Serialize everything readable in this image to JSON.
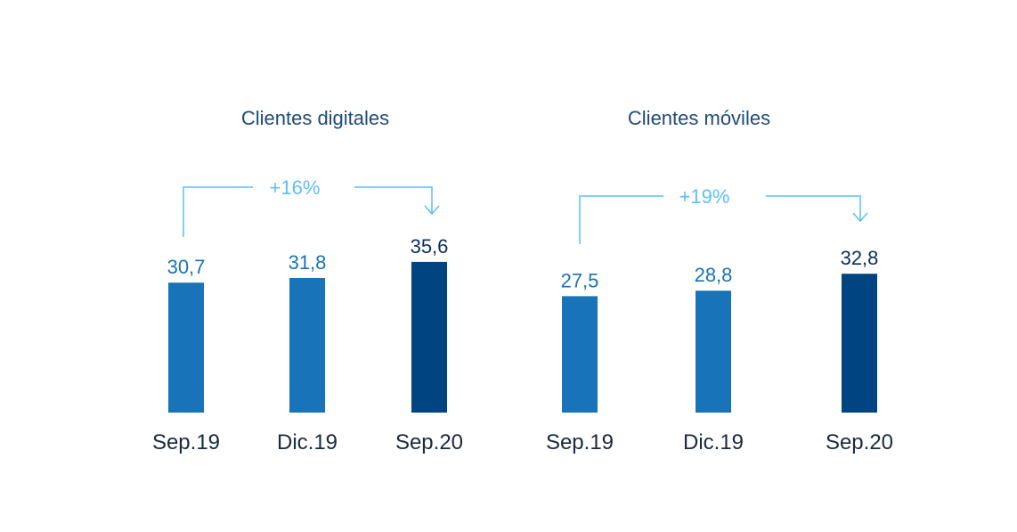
{
  "colors": {
    "bar": "#1973b8",
    "bar_highlight": "#004481",
    "title": "#1f4a7a",
    "value_label": "#1973b8",
    "value_label_highlight": "#0b2f5a",
    "category_label": "#1b2a3d",
    "growth": "#5bbeff"
  },
  "chart_data": [
    {
      "type": "bar",
      "title": "Clientes digitales",
      "categories": [
        "Sep.19",
        "Dic.19",
        "Sep.20"
      ],
      "values": [
        30.7,
        31.8,
        35.6
      ],
      "value_labels": [
        "30,7",
        "31,8",
        "35,6"
      ],
      "highlight_index": 2,
      "growth_label": "+16%"
    },
    {
      "type": "bar",
      "title": "Clientes móviles",
      "categories": [
        "Sep.19",
        "Dic.19",
        "Sep.20"
      ],
      "values": [
        27.5,
        28.8,
        32.8
      ],
      "value_labels": [
        "27,5",
        "28,8",
        "32,8"
      ],
      "highlight_index": 2,
      "growth_label": "+19%"
    }
  ]
}
